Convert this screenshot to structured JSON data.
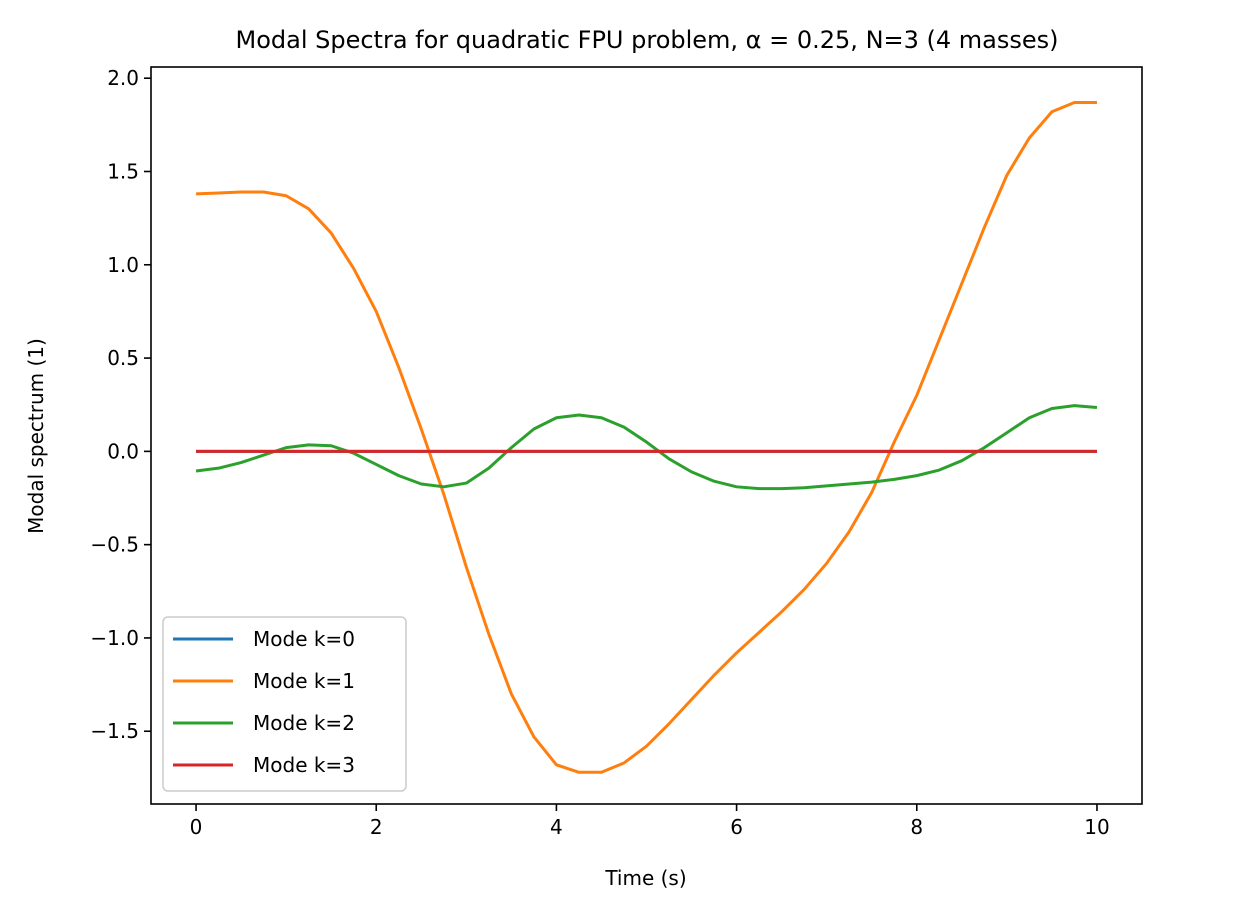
{
  "chart_data": {
    "type": "line",
    "title": "Modal Spectra for quadratic FPU problem, α = 0.25, N=3 (4 masses)",
    "xlabel": "Time (s)",
    "ylabel": "Modal spectrum (1)",
    "xlim": [
      -0.5,
      10.5
    ],
    "ylim": [
      -1.89,
      2.06
    ],
    "x_ticks": [
      0,
      2,
      4,
      6,
      8,
      10
    ],
    "x_tick_labels": [
      "0",
      "2",
      "4",
      "6",
      "8",
      "10"
    ],
    "y_ticks": [
      -1.5,
      -1.0,
      -0.5,
      0.0,
      0.5,
      1.0,
      1.5,
      2.0
    ],
    "y_tick_labels": [
      "−1.5",
      "−1.0",
      "−0.5",
      "0.0",
      "0.5",
      "1.0",
      "1.5",
      "2.0"
    ],
    "grid": false,
    "legend_position": "lower-left",
    "x": [
      0,
      0.25,
      0.5,
      0.75,
      1.0,
      1.25,
      1.5,
      1.75,
      2.0,
      2.25,
      2.5,
      2.75,
      3.0,
      3.25,
      3.5,
      3.75,
      4.0,
      4.25,
      4.5,
      4.75,
      5.0,
      5.25,
      5.5,
      5.75,
      6.0,
      6.25,
      6.5,
      6.75,
      7.0,
      7.25,
      7.5,
      7.75,
      8.0,
      8.25,
      8.5,
      8.75,
      9.0,
      9.25,
      9.5,
      9.75,
      10.0
    ],
    "series": [
      {
        "name": "Mode k=0",
        "color": "#1f77b4",
        "values": [
          0,
          0,
          0,
          0,
          0,
          0,
          0,
          0,
          0,
          0,
          0,
          0,
          0,
          0,
          0,
          0,
          0,
          0,
          0,
          0,
          0,
          0,
          0,
          0,
          0,
          0,
          0,
          0,
          0,
          0,
          0,
          0,
          0,
          0,
          0,
          0,
          0,
          0,
          0,
          0,
          0
        ]
      },
      {
        "name": "Mode k=1",
        "color": "#ff7f0e",
        "values": [
          1.38,
          1.385,
          1.39,
          1.39,
          1.37,
          1.3,
          1.17,
          0.98,
          0.75,
          0.45,
          0.12,
          -0.23,
          -0.62,
          -0.98,
          -1.3,
          -1.53,
          -1.68,
          -1.72,
          -1.72,
          -1.67,
          -1.58,
          -1.46,
          -1.33,
          -1.2,
          -1.08,
          -0.97,
          -0.86,
          -0.74,
          -0.6,
          -0.43,
          -0.22,
          0.05,
          0.3,
          0.6,
          0.9,
          1.2,
          1.48,
          1.68,
          1.82,
          1.87,
          1.87
        ]
      },
      {
        "name": "Mode k=2",
        "color": "#2ca02c",
        "values": [
          -0.105,
          -0.09,
          -0.06,
          -0.02,
          0.02,
          0.035,
          0.03,
          -0.01,
          -0.07,
          -0.13,
          -0.175,
          -0.19,
          -0.17,
          -0.09,
          0.02,
          0.12,
          0.18,
          0.195,
          0.18,
          0.13,
          0.05,
          -0.04,
          -0.11,
          -0.16,
          -0.19,
          -0.2,
          -0.2,
          -0.195,
          -0.185,
          -0.175,
          -0.165,
          -0.15,
          -0.13,
          -0.1,
          -0.05,
          0.02,
          0.1,
          0.18,
          0.23,
          0.245,
          0.235
        ]
      },
      {
        "name": "Mode k=3",
        "color": "#d62728",
        "values": [
          0,
          0,
          0,
          0,
          0,
          0,
          0,
          0,
          0,
          0,
          0,
          0,
          0,
          0,
          0,
          0,
          0,
          0,
          0,
          0,
          0,
          0,
          0,
          0,
          0,
          0,
          0,
          0,
          0,
          0,
          0,
          0,
          0,
          0,
          0,
          0,
          0,
          0,
          0,
          0,
          0
        ]
      }
    ]
  }
}
